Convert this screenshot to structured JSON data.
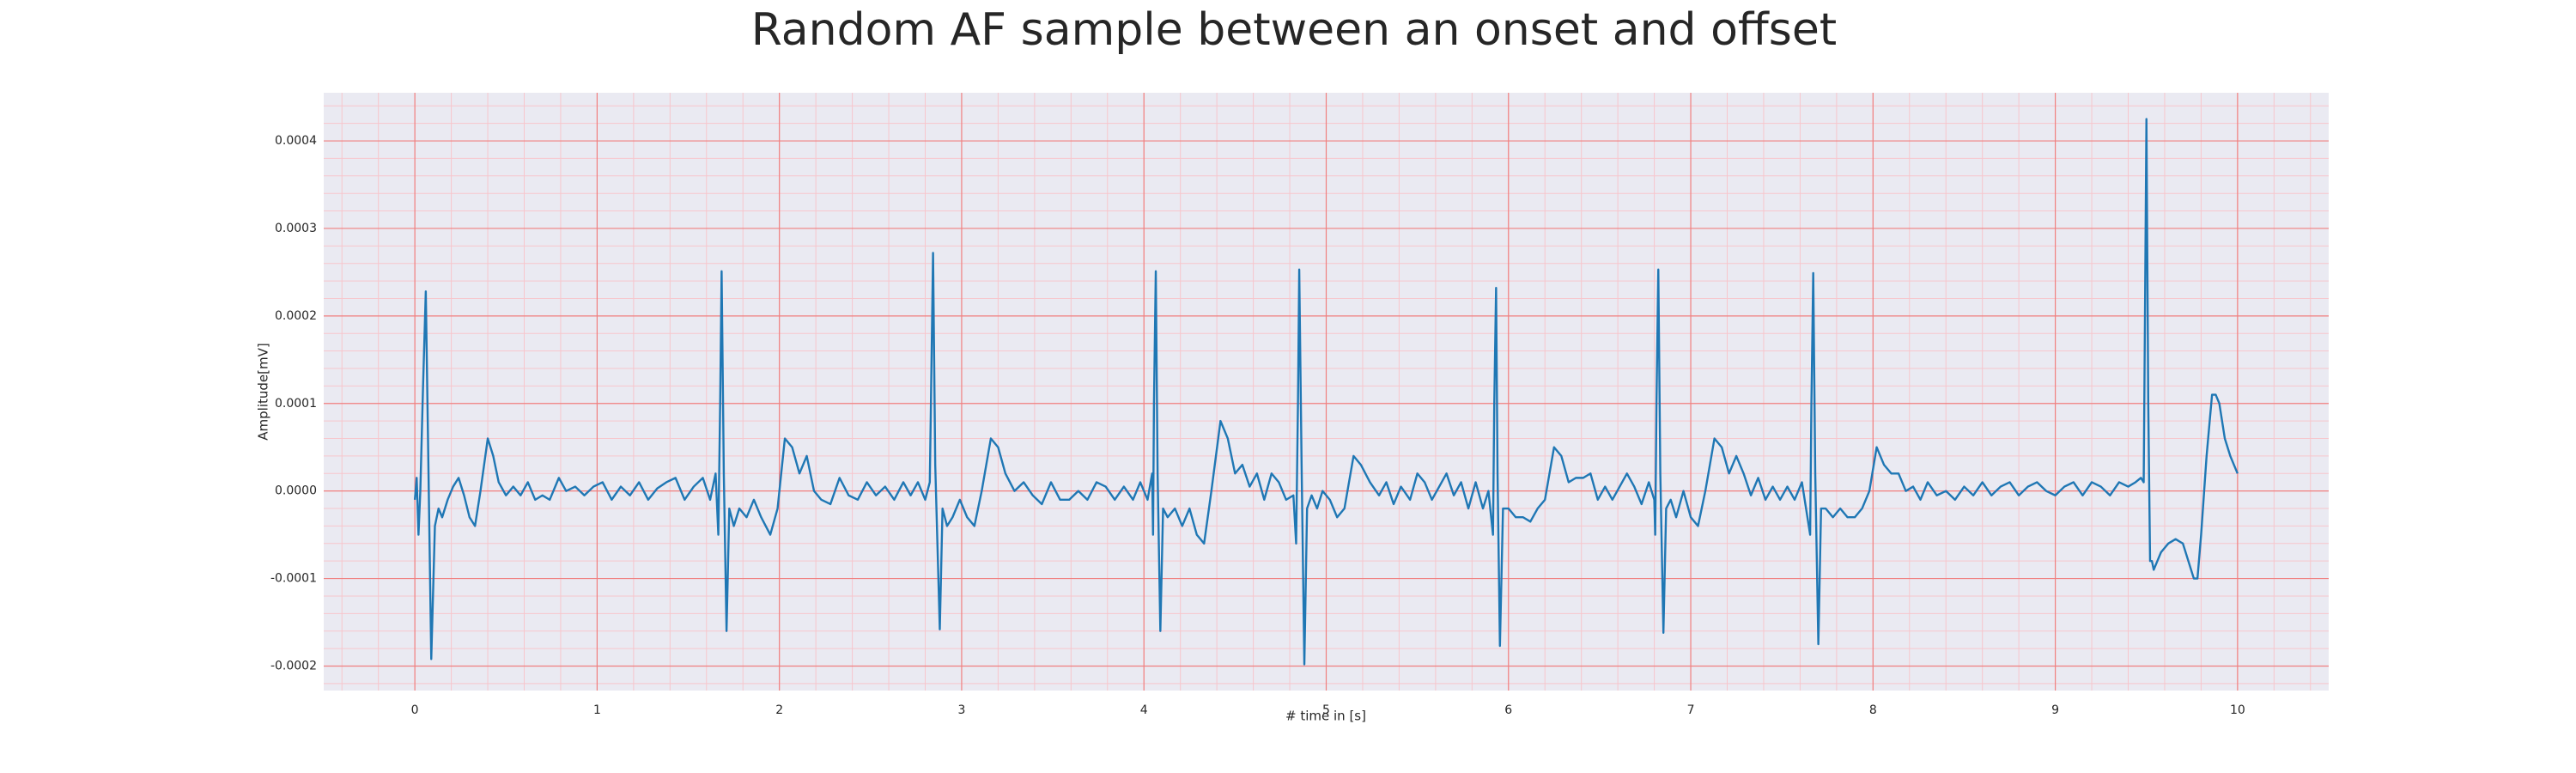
{
  "chart_data": {
    "type": "line",
    "title": "Random AF sample between an onset and offset",
    "xlabel": "# time in [s]",
    "ylabel": "Amplitude[mV]",
    "xlim": [
      -0.5,
      10.5
    ],
    "ylim": [
      -0.000228,
      0.000455
    ],
    "xticks": [
      0,
      1,
      2,
      3,
      4,
      5,
      6,
      7,
      8,
      9,
      10
    ],
    "yticks": [
      -0.0002,
      -0.0001,
      {
        "value": 0,
        "label": "0.0000"
      },
      0.0001,
      0.0002,
      0.0003,
      0.0004
    ],
    "grid": true,
    "grid_color": "#f08080",
    "minor_grid": true,
    "minor_grid_color": "#f7c6cc",
    "background": "#eaeaf2",
    "x": [
      0.0,
      0.01,
      0.02,
      0.03,
      0.045,
      0.06,
      0.075,
      0.09,
      0.11,
      0.13,
      0.15,
      0.18,
      0.21,
      0.24,
      0.27,
      0.3,
      0.33,
      0.36,
      0.4,
      0.43,
      0.46,
      0.5,
      0.54,
      0.58,
      0.62,
      0.66,
      0.7,
      0.74,
      0.79,
      0.83,
      0.88,
      0.93,
      0.98,
      1.03,
      1.08,
      1.13,
      1.18,
      1.23,
      1.28,
      1.33,
      1.38,
      1.43,
      1.48,
      1.53,
      1.58,
      1.62,
      1.65,
      1.665,
      1.675,
      1.683,
      1.695,
      1.71,
      1.725,
      1.75,
      1.78,
      1.82,
      1.86,
      1.9,
      1.95,
      1.99,
      2.03,
      2.07,
      2.11,
      2.15,
      2.19,
      2.23,
      2.28,
      2.33,
      2.38,
      2.43,
      2.48,
      2.53,
      2.58,
      2.63,
      2.68,
      2.72,
      2.76,
      2.8,
      2.825,
      2.83,
      2.843,
      2.855,
      2.88,
      2.895,
      2.92,
      2.95,
      2.99,
      3.03,
      3.07,
      3.11,
      3.16,
      3.2,
      3.24,
      3.29,
      3.34,
      3.39,
      3.44,
      3.49,
      3.54,
      3.59,
      3.64,
      3.69,
      3.74,
      3.79,
      3.84,
      3.89,
      3.94,
      3.98,
      4.02,
      4.045,
      4.05,
      4.055,
      4.065,
      4.075,
      4.09,
      4.105,
      4.13,
      4.17,
      4.21,
      4.25,
      4.29,
      4.33,
      4.37,
      4.42,
      4.46,
      4.5,
      4.54,
      4.58,
      4.62,
      4.66,
      4.7,
      4.74,
      4.78,
      4.82,
      4.835,
      4.845,
      4.852,
      4.865,
      4.88,
      4.895,
      4.92,
      4.95,
      4.98,
      5.02,
      5.06,
      5.1,
      5.15,
      5.19,
      5.24,
      5.29,
      5.33,
      5.37,
      5.41,
      5.46,
      5.5,
      5.54,
      5.58,
      5.62,
      5.66,
      5.7,
      5.74,
      5.78,
      5.82,
      5.86,
      5.89,
      5.915,
      5.922,
      5.932,
      5.94,
      5.953,
      5.97,
      6.0,
      6.04,
      6.08,
      6.12,
      6.16,
      6.2,
      6.25,
      6.29,
      6.33,
      6.37,
      6.41,
      6.45,
      6.49,
      6.53,
      6.57,
      6.61,
      6.65,
      6.69,
      6.73,
      6.77,
      6.8,
      6.805,
      6.812,
      6.822,
      6.833,
      6.85,
      6.865,
      6.89,
      6.92,
      6.96,
      7.0,
      7.04,
      7.08,
      7.13,
      7.17,
      7.21,
      7.25,
      7.29,
      7.33,
      7.37,
      7.41,
      7.45,
      7.49,
      7.53,
      7.57,
      7.61,
      7.655,
      7.662,
      7.672,
      7.683,
      7.7,
      7.715,
      7.74,
      7.78,
      7.82,
      7.86,
      7.9,
      7.94,
      7.98,
      8.02,
      8.06,
      8.1,
      8.14,
      8.18,
      8.22,
      8.26,
      8.3,
      8.35,
      8.4,
      8.45,
      8.5,
      8.55,
      8.6,
      8.65,
      8.7,
      8.75,
      8.8,
      8.85,
      8.9,
      8.95,
      9.0,
      9.05,
      9.1,
      9.15,
      9.2,
      9.25,
      9.3,
      9.35,
      9.4,
      9.44,
      9.47,
      9.485,
      9.492,
      9.5,
      9.51,
      9.52,
      9.53,
      9.54,
      9.56,
      9.58,
      9.62,
      9.66,
      9.7,
      9.73,
      9.76,
      9.78,
      9.8,
      9.83,
      9.86,
      9.88,
      9.9,
      9.93,
      9.96,
      10.0
    ],
    "series": [
      {
        "color": "#1f77b4",
        "values": [
          -1e-05,
          1.5e-05,
          -5e-05,
          0,
          0.00012,
          0.000228,
          2e-05,
          -0.000192,
          -4e-05,
          -2e-05,
          -3e-05,
          -1e-05,
          5e-06,
          1.5e-05,
          -5e-06,
          -3e-05,
          -4e-05,
          0,
          6e-05,
          4e-05,
          1e-05,
          -5e-06,
          5e-06,
          -5e-06,
          1e-05,
          -1e-05,
          -5e-06,
          -1e-05,
          1.5e-05,
          0,
          5e-06,
          -5e-06,
          5e-06,
          1e-05,
          -1e-05,
          5e-06,
          -5e-06,
          1e-05,
          -1e-05,
          3e-06,
          1e-05,
          1.5e-05,
          -1e-05,
          5e-06,
          1.5e-05,
          -1e-05,
          2e-05,
          -5e-05,
          0.0001,
          0.000251,
          2e-05,
          -0.00016,
          -2e-05,
          -4e-05,
          -2e-05,
          -3e-05,
          -1e-05,
          -3e-05,
          -5e-05,
          -2e-05,
          6e-05,
          5e-05,
          2e-05,
          4e-05,
          0,
          -1e-05,
          -1.5e-05,
          1.5e-05,
          -5e-06,
          -1e-05,
          1e-05,
          -5e-06,
          5e-06,
          -1e-05,
          1e-05,
          -5e-06,
          1e-05,
          -1e-05,
          1e-05,
          8e-05,
          0.000272,
          3e-05,
          -0.000158,
          -2e-05,
          -4e-05,
          -3e-05,
          -1e-05,
          -3e-05,
          -4e-05,
          0,
          6e-05,
          5e-05,
          2e-05,
          0,
          1e-05,
          -5e-06,
          -1.5e-05,
          1e-05,
          -1e-05,
          -1e-05,
          0,
          -1e-05,
          1e-05,
          5e-06,
          -1e-05,
          5e-06,
          -1e-05,
          1e-05,
          -1e-05,
          2e-05,
          -5e-05,
          0.0001,
          0.000251,
          2e-05,
          -0.00016,
          -2e-05,
          -3e-05,
          -2e-05,
          -4e-05,
          -2e-05,
          -5e-05,
          -6e-05,
          0,
          8e-05,
          6e-05,
          2e-05,
          3e-05,
          5e-06,
          2e-05,
          -1e-05,
          2e-05,
          1e-05,
          -1e-05,
          -5e-06,
          -6e-05,
          0.0001,
          0.000253,
          3e-05,
          -0.000198,
          -2e-05,
          -5e-06,
          -2e-05,
          0,
          -1e-05,
          -3e-05,
          -2e-05,
          4e-05,
          3e-05,
          1e-05,
          -5e-06,
          1e-05,
          -1.5e-05,
          5e-06,
          -1e-05,
          2e-05,
          1e-05,
          -1e-05,
          5e-06,
          2e-05,
          -5e-06,
          1e-05,
          -2e-05,
          1e-05,
          -2e-05,
          0,
          -5e-05,
          0.0001,
          0.000232,
          2e-05,
          -0.000177,
          -2e-05,
          -2e-05,
          -3e-05,
          -3e-05,
          -3.5e-05,
          -2e-05,
          -1e-05,
          5e-05,
          4e-05,
          1e-05,
          1.5e-05,
          1.5e-05,
          2e-05,
          -1e-05,
          5e-06,
          -1e-05,
          5e-06,
          2e-05,
          5e-06,
          -1.5e-05,
          1e-05,
          -1e-05,
          -5e-05,
          0.0001,
          0.000253,
          2e-05,
          -0.000162,
          -2e-05,
          -1e-05,
          -3e-05,
          0,
          -3e-05,
          -4e-05,
          0,
          6e-05,
          5e-05,
          2e-05,
          4e-05,
          2e-05,
          -5e-06,
          1.5e-05,
          -1e-05,
          5e-06,
          -1e-05,
          5e-06,
          -1e-05,
          1e-05,
          -5e-05,
          0.0001,
          0.000249,
          2e-05,
          -0.000175,
          -2e-05,
          -2e-05,
          -3e-05,
          -2e-05,
          -3e-05,
          -3e-05,
          -2e-05,
          0,
          5e-05,
          3e-05,
          2e-05,
          2e-05,
          0,
          5e-06,
          -1e-05,
          1e-05,
          -5e-06,
          0,
          -1e-05,
          5e-06,
          -5e-06,
          1e-05,
          -5e-06,
          5e-06,
          1e-05,
          -5e-06,
          5e-06,
          1e-05,
          0,
          -5e-06,
          5e-06,
          1e-05,
          -5e-06,
          1e-05,
          5e-06,
          -5e-06,
          1e-05,
          5e-06,
          1e-05,
          1.5e-05,
          1e-05,
          0.0002,
          0.000425,
          0.0001,
          -8e-05,
          -8e-05,
          -9e-05,
          -8e-05,
          -7e-05,
          -6e-05,
          -5.5e-05,
          -6e-05,
          -8e-05,
          -0.0001,
          -0.0001,
          -5e-05,
          4e-05,
          0.00011,
          0.00011,
          0.0001,
          6e-05,
          4e-05,
          2e-05
        ]
      }
    ]
  }
}
